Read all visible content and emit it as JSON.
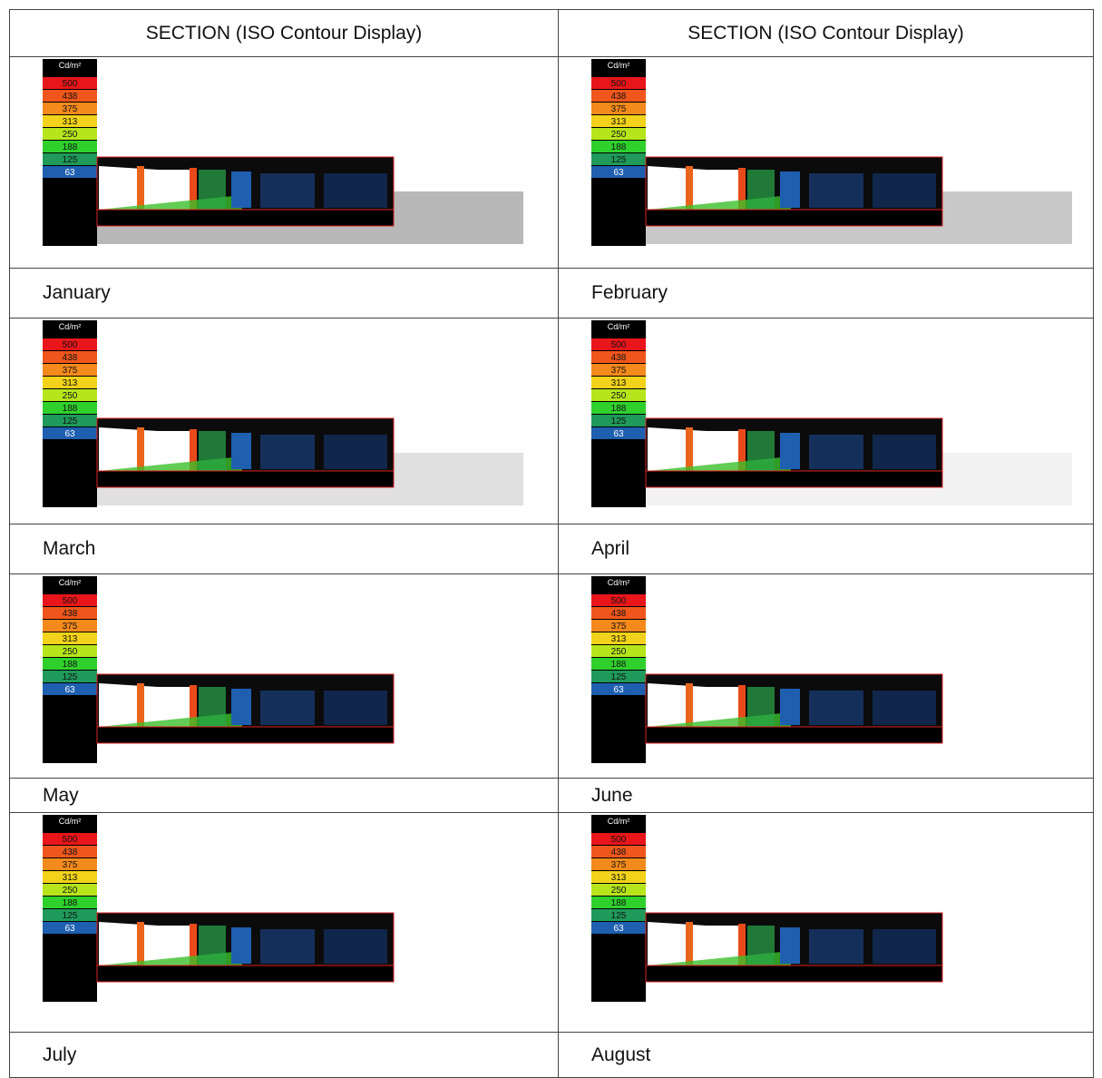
{
  "header": [
    "SECTION (ISO Contour Display)",
    "SECTION (ISO Contour Display)"
  ],
  "legend": {
    "unit": "Cd/m²",
    "levels": [
      500,
      438,
      375,
      313,
      250,
      188,
      125,
      63
    ]
  },
  "months": [
    [
      "January",
      "February"
    ],
    [
      "March",
      "April"
    ],
    [
      "May",
      "June"
    ],
    [
      "July",
      "August"
    ]
  ]
}
